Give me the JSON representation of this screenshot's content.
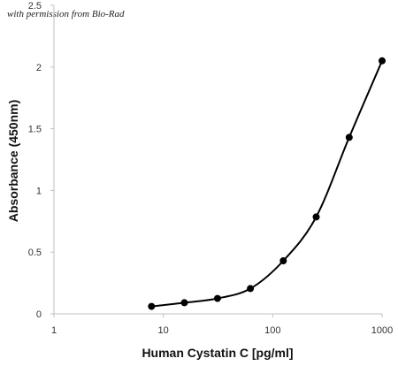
{
  "credit": "with permission from Bio-Rad",
  "chart_data": {
    "type": "line",
    "title": "",
    "xlabel": "Human Cystatin C [pg/ml]",
    "ylabel": "Absorbance (450nm)",
    "x_scale": "log",
    "xlim": [
      1,
      1000
    ],
    "ylim": [
      0,
      2.5
    ],
    "x_ticks": [
      "1",
      "10",
      "100",
      "1000"
    ],
    "y_ticks": [
      "0",
      "0.5",
      "1",
      "1.5",
      "2",
      "2.5"
    ],
    "grid": false,
    "legend": "none",
    "series": [
      {
        "x": [
          7.8,
          15.6,
          31.25,
          62.5,
          125,
          250,
          500,
          1000
        ],
        "y": [
          0.06,
          0.09,
          0.125,
          0.205,
          0.43,
          0.785,
          1.43,
          2.05
        ]
      }
    ],
    "colors": {
      "line": "#000000",
      "marker": "#000000",
      "axis": "#bfbfbf"
    }
  }
}
